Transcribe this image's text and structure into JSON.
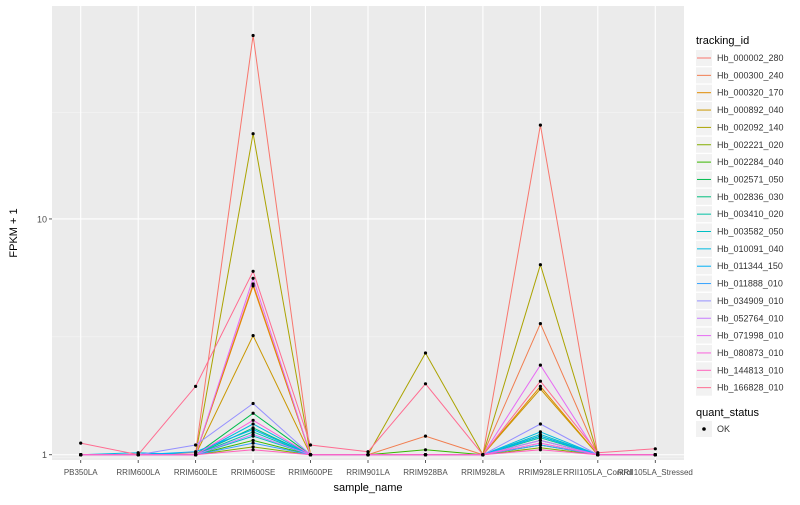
{
  "chart_data": {
    "type": "line",
    "title": "",
    "xlabel": "sample_name",
    "ylabel": "FPKM + 1",
    "y_scale": "log10",
    "ylim": [
      0.95,
      80
    ],
    "y_ticks": [
      1,
      10
    ],
    "y_tick_labels": [
      "1",
      "10"
    ],
    "grid": true,
    "background": "#EBEBEB",
    "legend_position": "right",
    "categories": [
      "PB350LA",
      "RRIM600LA",
      "RRIM600LE",
      "RRIM600SE",
      "RRIM600PE",
      "RRIM901LA",
      "RRIM928BA",
      "RRIM928LA",
      "RRIM928LE",
      "RRII105LA_Control",
      "RRII105LA_Stressed"
    ],
    "category_labels": [
      "PB350LA",
      "RRIM600LA",
      "RRIM600LE",
      "RRIM600SE",
      "RRIM600PE",
      "RRIM901LA",
      "RRIM928BA",
      "RRIM928LA",
      "RRIM928LE",
      "RRII105LA_Control",
      "RRII105LA_Stressed"
    ],
    "legend": {
      "title": "tracking_id",
      "quant_title": "quant_status",
      "quant_label": "OK"
    },
    "series": [
      {
        "name": "Hb_000002_280",
        "color": "#F8766D",
        "values": [
          1.0,
          1.0,
          1.02,
          60,
          1.0,
          1.0,
          1.0,
          1.0,
          25,
          1.0,
          1.0
        ]
      },
      {
        "name": "Hb_000300_240",
        "color": "#F17D4F",
        "values": [
          1.0,
          1.0,
          1.0,
          5.3,
          1.0,
          1.0,
          1.2,
          1.0,
          3.6,
          1.0,
          1.0
        ]
      },
      {
        "name": "Hb_000320_170",
        "color": "#E18A00",
        "values": [
          1.0,
          1.0,
          1.0,
          5.2,
          1.0,
          1.0,
          1.0,
          1.0,
          1.95,
          1.0,
          1.0
        ]
      },
      {
        "name": "Hb_000892_040",
        "color": "#CA9700",
        "values": [
          1.0,
          1.0,
          1.0,
          3.2,
          1.0,
          1.0,
          1.0,
          1.0,
          1.9,
          1.0,
          1.0
        ]
      },
      {
        "name": "Hb_002092_140",
        "color": "#ABA300",
        "values": [
          1.0,
          1.0,
          1.0,
          23,
          1.0,
          1.0,
          2.7,
          1.0,
          6.4,
          1.0,
          1.0
        ]
      },
      {
        "name": "Hb_002221_020",
        "color": "#82AD00",
        "values": [
          1.0,
          1.0,
          1.0,
          1.08,
          1.0,
          1.0,
          1.0,
          1.0,
          1.07,
          1.0,
          1.0
        ]
      },
      {
        "name": "Hb_002284_040",
        "color": "#39B600",
        "values": [
          1.0,
          1.0,
          1.0,
          1.15,
          1.0,
          1.0,
          1.05,
          1.0,
          1.1,
          1.0,
          1.0
        ]
      },
      {
        "name": "Hb_002571_050",
        "color": "#00BB4E",
        "values": [
          1.0,
          1.0,
          1.0,
          1.5,
          1.0,
          1.0,
          1.0,
          1.0,
          1.15,
          1.0,
          1.0
        ]
      },
      {
        "name": "Hb_002836_030",
        "color": "#00BF7D",
        "values": [
          1.0,
          1.0,
          1.0,
          1.3,
          1.0,
          1.0,
          1.0,
          1.0,
          1.2,
          1.0,
          1.0
        ]
      },
      {
        "name": "Hb_003410_020",
        "color": "#00C1A3",
        "values": [
          1.0,
          1.0,
          1.0,
          1.25,
          1.0,
          1.0,
          1.0,
          1.0,
          1.18,
          1.0,
          1.0
        ]
      },
      {
        "name": "Hb_003582_050",
        "color": "#00BFC4",
        "values": [
          1.0,
          1.0,
          1.0,
          1.2,
          1.0,
          1.0,
          1.0,
          1.0,
          1.22,
          1.0,
          1.0
        ]
      },
      {
        "name": "Hb_010091_040",
        "color": "#00BAE0",
        "values": [
          1.0,
          1.02,
          1.0,
          1.35,
          1.0,
          1.0,
          1.0,
          1.0,
          1.25,
          1.0,
          1.0
        ]
      },
      {
        "name": "Hb_011344_150",
        "color": "#00B0F6",
        "values": [
          1.0,
          1.0,
          1.03,
          1.28,
          1.0,
          1.0,
          1.0,
          1.0,
          1.2,
          1.0,
          1.0
        ]
      },
      {
        "name": "Hb_011888_010",
        "color": "#35A2FF",
        "values": [
          1.0,
          1.0,
          1.0,
          1.12,
          1.0,
          1.0,
          1.0,
          1.0,
          1.1,
          1.0,
          1.0
        ]
      },
      {
        "name": "Hb_034909_010",
        "color": "#9590FF",
        "values": [
          1.0,
          1.0,
          1.1,
          1.65,
          1.0,
          1.0,
          1.0,
          1.0,
          1.35,
          1.0,
          1.0
        ]
      },
      {
        "name": "Hb_052764_010",
        "color": "#C77CFF",
        "values": [
          1.0,
          1.0,
          1.0,
          1.22,
          1.0,
          1.0,
          1.0,
          1.0,
          1.15,
          1.0,
          1.0
        ]
      },
      {
        "name": "Hb_071998_010",
        "color": "#E76BF3",
        "values": [
          1.0,
          1.0,
          1.0,
          5.6,
          1.0,
          1.0,
          1.0,
          1.0,
          2.4,
          1.0,
          1.0
        ]
      },
      {
        "name": "Hb_080873_010",
        "color": "#FA62DB",
        "values": [
          1.0,
          1.0,
          1.0,
          1.4,
          1.0,
          1.0,
          1.0,
          1.0,
          1.12,
          1.0,
          1.0
        ]
      },
      {
        "name": "Hb_144813_010",
        "color": "#FF62BC",
        "values": [
          1.0,
          1.0,
          1.0,
          1.05,
          1.0,
          1.0,
          1.0,
          1.0,
          1.05,
          1.0,
          1.0
        ]
      },
      {
        "name": "Hb_166828_010",
        "color": "#FF6C91",
        "values": [
          1.12,
          1.0,
          1.95,
          6.0,
          1.1,
          1.03,
          2.0,
          1.0,
          2.05,
          1.02,
          1.06
        ]
      }
    ]
  }
}
